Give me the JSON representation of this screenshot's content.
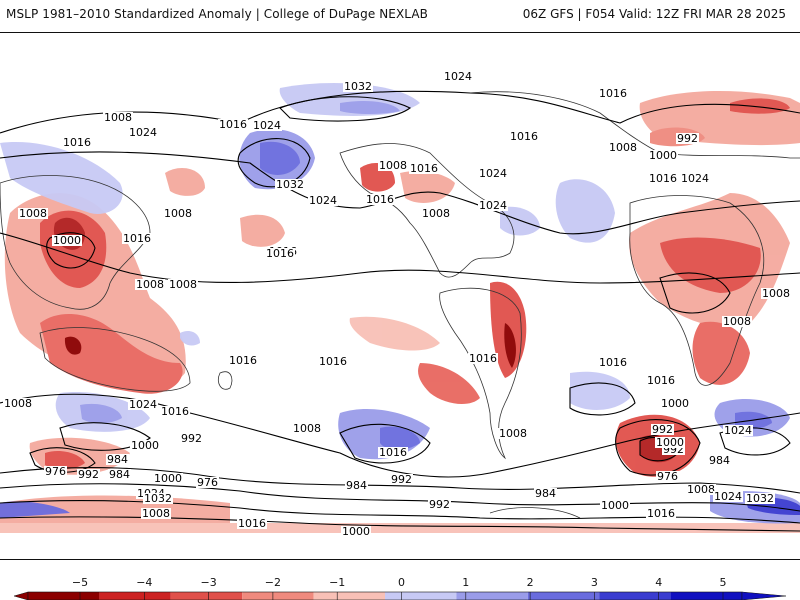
{
  "header": {
    "title_left": "MSLP 1981–2010 Standardized Anomaly | College of DuPage NEXLAB",
    "title_right": "06Z GFS | F054 Valid: 12Z FRI MAR 28 2025"
  },
  "isobar_labels": [
    {
      "text": "1024"
    },
    {
      "text": "1032"
    },
    {
      "text": "1016"
    },
    {
      "text": "1008"
    },
    {
      "text": "1024"
    },
    {
      "text": "1016"
    },
    {
      "text": "1024"
    },
    {
      "text": "1032"
    },
    {
      "text": "1008"
    },
    {
      "text": "1016"
    },
    {
      "text": "1024"
    },
    {
      "text": "1016"
    },
    {
      "text": "1016"
    },
    {
      "text": "1008"
    },
    {
      "text": "1000"
    },
    {
      "text": "1024"
    },
    {
      "text": "1008"
    },
    {
      "text": "1016"
    },
    {
      "text": "1024"
    },
    {
      "text": "1024"
    },
    {
      "text": "1016"
    },
    {
      "text": "1008"
    },
    {
      "text": "1016"
    },
    {
      "text": "992"
    },
    {
      "text": "1000"
    },
    {
      "text": "1008"
    },
    {
      "text": "1016"
    },
    {
      "text": "1008"
    },
    {
      "text": "1008"
    },
    {
      "text": "1016"
    },
    {
      "text": "1016"
    },
    {
      "text": "1016"
    },
    {
      "text": "1016"
    },
    {
      "text": "1016"
    },
    {
      "text": "1016"
    },
    {
      "text": "1008"
    },
    {
      "text": "1024"
    },
    {
      "text": "1016"
    },
    {
      "text": "1008"
    },
    {
      "text": "1016"
    },
    {
      "text": "1000"
    },
    {
      "text": "992"
    },
    {
      "text": "984"
    },
    {
      "text": "976"
    },
    {
      "text": "992"
    },
    {
      "text": "984"
    },
    {
      "text": "1000"
    },
    {
      "text": "976"
    },
    {
      "text": "1024"
    },
    {
      "text": "1032"
    },
    {
      "text": "1008"
    },
    {
      "text": "1016"
    },
    {
      "text": "1000"
    },
    {
      "text": "992"
    },
    {
      "text": "984"
    },
    {
      "text": "992"
    },
    {
      "text": "984"
    },
    {
      "text": "1008"
    },
    {
      "text": "1000"
    },
    {
      "text": "992"
    },
    {
      "text": "1024"
    },
    {
      "text": "976"
    },
    {
      "text": "984"
    },
    {
      "text": "1008"
    },
    {
      "text": "1024"
    },
    {
      "text": "1032"
    },
    {
      "text": "1000"
    },
    {
      "text": "1016"
    },
    {
      "text": "992"
    },
    {
      "text": "1000"
    },
    {
      "text": "1008"
    },
    {
      "text": "1008"
    }
  ],
  "colorbar": {
    "ticks": [
      "−5",
      "−4",
      "−3",
      "−2",
      "−1",
      "0",
      "1",
      "2",
      "3",
      "4",
      "5"
    ],
    "colors": [
      "#8b0000",
      "#cc2222",
      "#e0504a",
      "#ef8a7e",
      "#f8c0b6",
      "#ffffff",
      "#c7c9f4",
      "#9a9ce9",
      "#6a6cde",
      "#3a3cd0",
      "#1010c0"
    ]
  }
}
